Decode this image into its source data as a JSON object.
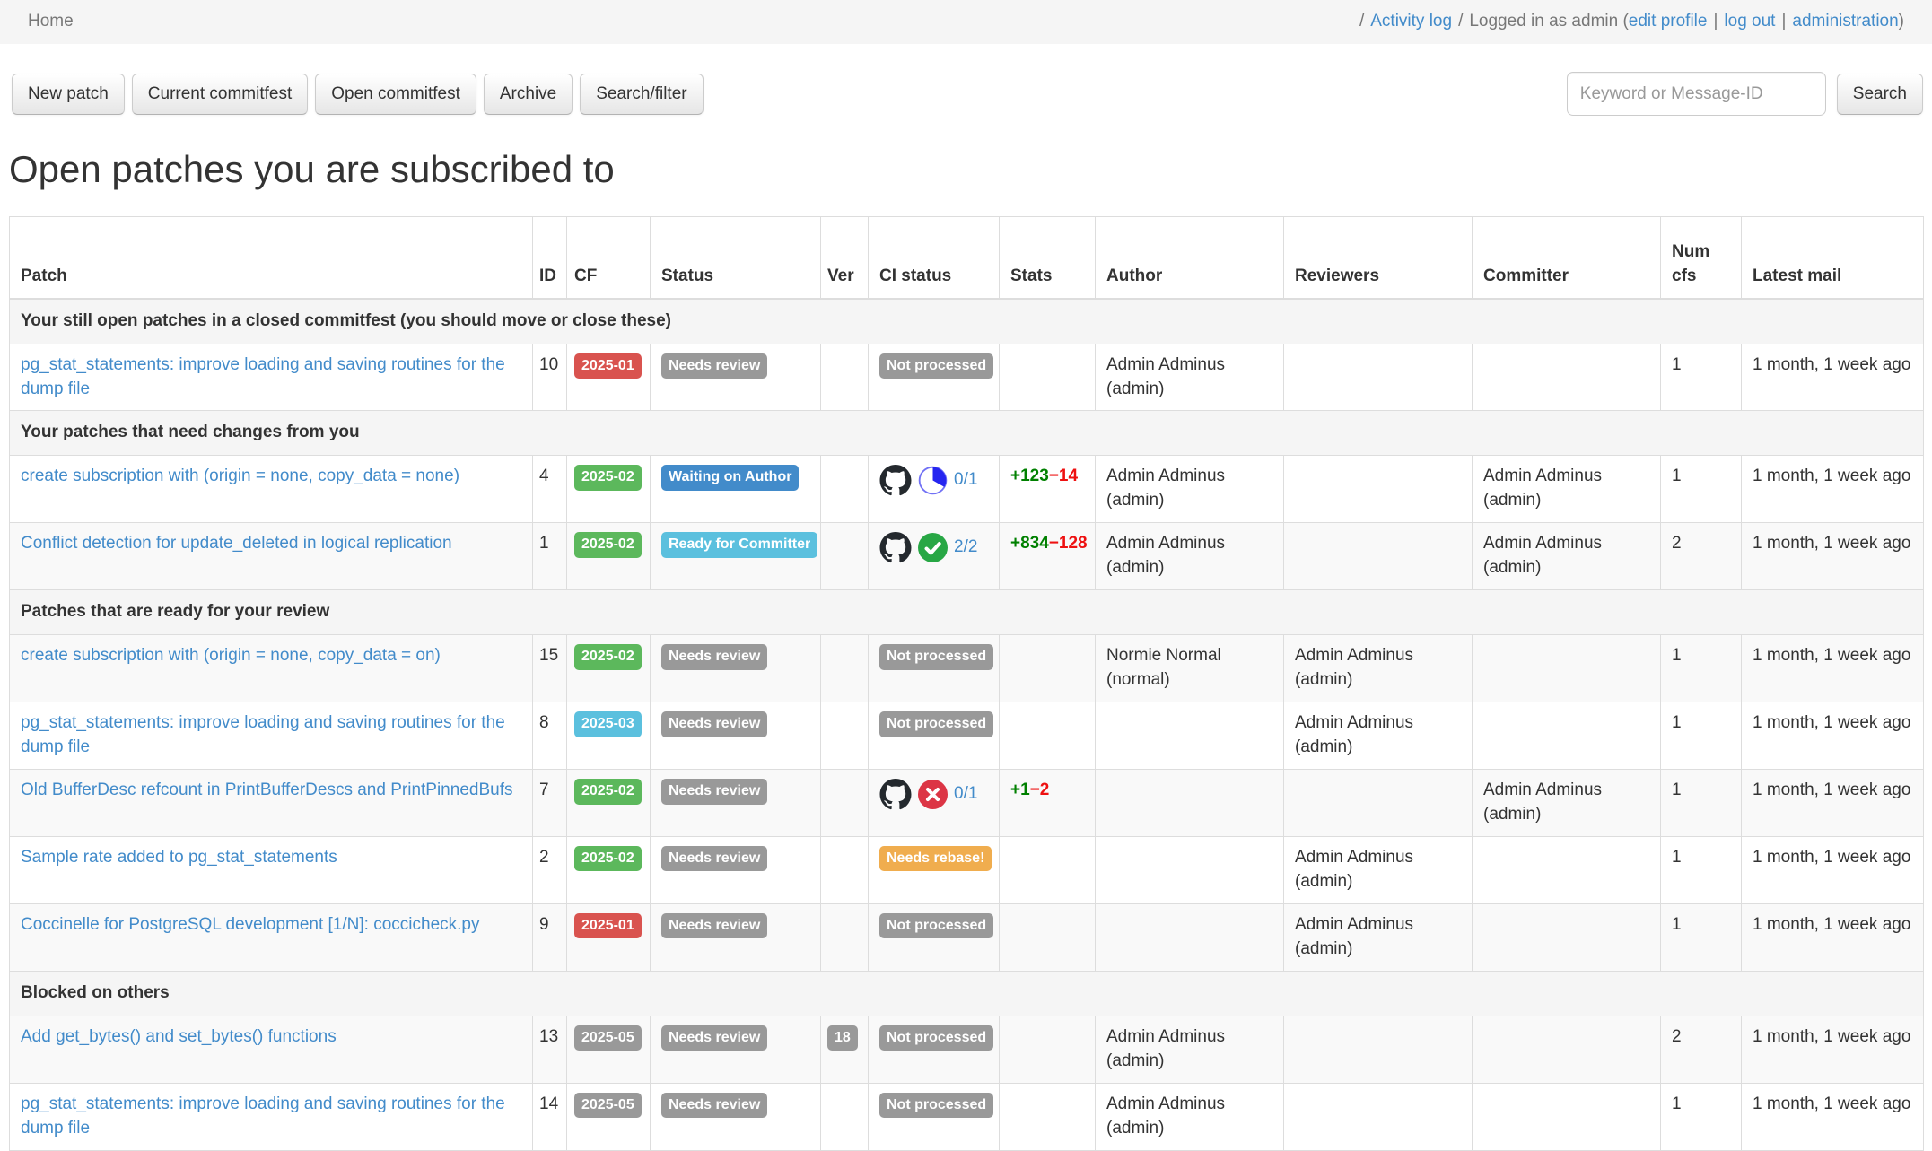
{
  "topbar": {
    "home": "Home",
    "sep": "/",
    "activity_log": "Activity log",
    "logged_in_prefix": "Logged in as admin (",
    "edit_profile": "edit profile",
    "pipe": "|",
    "log_out": "log out",
    "administration": "administration",
    "paren_close": ")"
  },
  "toolbar": {
    "buttons": [
      "New patch",
      "Current commitfest",
      "Open commitfest",
      "Archive",
      "Search/filter"
    ],
    "search_placeholder": "Keyword or Message-ID",
    "search_button": "Search"
  },
  "page": {
    "title": "Open patches you are subscribed to"
  },
  "colors": {
    "link": "#428bca",
    "badge_gray": "#999999",
    "badge_green": "#5cb85c",
    "badge_red": "#d9534f",
    "badge_blue": "#428bca",
    "badge_lightblue": "#5bc0de",
    "badge_orange": "#f0ad4e",
    "stats_added": "#008000",
    "stats_removed": "#ee1111",
    "ci_running": "#2525f0",
    "ci_success": "#28a745",
    "ci_failure": "#dc3545",
    "github": "#24292e"
  },
  "table": {
    "columns": [
      "Patch",
      "ID",
      "CF",
      "Status",
      "Ver",
      "CI status",
      "Stats",
      "Author",
      "Reviewers",
      "Committer",
      "Num cfs",
      "Latest mail"
    ],
    "rows": [
      {
        "type": "section",
        "label": "Your still open patches in a closed commitfest (you should move or close these)"
      },
      {
        "type": "patch",
        "title": "pg_stat_statements: improve loading and saving routines for the dump file",
        "id": "10",
        "cf": {
          "label": "2025-01",
          "color": "#d9534f"
        },
        "status": {
          "label": "Needs review",
          "color": "#999999"
        },
        "ver": null,
        "ci": {
          "kind": "badge",
          "label": "Not processed",
          "color": "#999999"
        },
        "stats": null,
        "author": "Admin Adminus (admin)",
        "reviewers": "",
        "committer": "",
        "num_cfs": "1",
        "latest_mail": "1 month, 1 week ago"
      },
      {
        "type": "section",
        "label": "Your patches that need changes from you"
      },
      {
        "type": "patch",
        "title": "create subscription with (origin = none, copy_data = none)",
        "id": "4",
        "cf": {
          "label": "2025-02",
          "color": "#5cb85c"
        },
        "status": {
          "label": "Waiting on Author",
          "color": "#428bca"
        },
        "ver": null,
        "ci": {
          "kind": "github",
          "state": "running",
          "label": "0/1"
        },
        "stats": {
          "added": "+123",
          "removed": "−14"
        },
        "author": "Admin Adminus (admin)",
        "reviewers": "",
        "committer": "Admin Adminus (admin)",
        "num_cfs": "1",
        "latest_mail": "1 month, 1 week ago"
      },
      {
        "type": "patch",
        "title": "Conflict detection for update_deleted in logical replication",
        "id": "1",
        "cf": {
          "label": "2025-02",
          "color": "#5cb85c"
        },
        "status": {
          "label": "Ready for Committer",
          "color": "#5bc0de"
        },
        "ver": null,
        "ci": {
          "kind": "github",
          "state": "success",
          "label": "2/2"
        },
        "stats": {
          "added": "+834",
          "removed": "−128"
        },
        "author": "Admin Adminus (admin)",
        "reviewers": "",
        "committer": "Admin Adminus (admin)",
        "num_cfs": "2",
        "latest_mail": "1 month, 1 week ago"
      },
      {
        "type": "section",
        "label": "Patches that are ready for your review"
      },
      {
        "type": "patch",
        "title": "create subscription with (origin = none, copy_data = on)",
        "id": "15",
        "cf": {
          "label": "2025-02",
          "color": "#5cb85c"
        },
        "status": {
          "label": "Needs review",
          "color": "#999999"
        },
        "ver": null,
        "ci": {
          "kind": "badge",
          "label": "Not processed",
          "color": "#999999"
        },
        "stats": null,
        "author": "Normie Normal (normal)",
        "reviewers": "Admin Adminus (admin)",
        "committer": "",
        "num_cfs": "1",
        "latest_mail": "1 month, 1 week ago"
      },
      {
        "type": "patch",
        "title": "pg_stat_statements: improve loading and saving routines for the dump file",
        "id": "8",
        "cf": {
          "label": "2025-03",
          "color": "#5bc0de"
        },
        "status": {
          "label": "Needs review",
          "color": "#999999"
        },
        "ver": null,
        "ci": {
          "kind": "badge",
          "label": "Not processed",
          "color": "#999999"
        },
        "stats": null,
        "author": "",
        "reviewers": "Admin Adminus (admin)",
        "committer": "",
        "num_cfs": "1",
        "latest_mail": "1 month, 1 week ago"
      },
      {
        "type": "patch",
        "title": "Old BufferDesc refcount in PrintBufferDescs and PrintPinnedBufs",
        "id": "7",
        "cf": {
          "label": "2025-02",
          "color": "#5cb85c"
        },
        "status": {
          "label": "Needs review",
          "color": "#999999"
        },
        "ver": null,
        "ci": {
          "kind": "github",
          "state": "failure",
          "label": "0/1"
        },
        "stats": {
          "added": "+1",
          "removed": "−2"
        },
        "author": "",
        "reviewers": "",
        "committer": "Admin Adminus (admin)",
        "num_cfs": "1",
        "latest_mail": "1 month, 1 week ago"
      },
      {
        "type": "patch",
        "title": "Sample rate added to pg_stat_statements",
        "id": "2",
        "cf": {
          "label": "2025-02",
          "color": "#5cb85c"
        },
        "status": {
          "label": "Needs review",
          "color": "#999999"
        },
        "ver": null,
        "ci": {
          "kind": "badge",
          "label": "Needs rebase!",
          "color": "#f0ad4e"
        },
        "stats": null,
        "author": "",
        "reviewers": "Admin Adminus (admin)",
        "committer": "",
        "num_cfs": "1",
        "latest_mail": "1 month, 1 week ago"
      },
      {
        "type": "patch",
        "title": "Coccinelle for PostgreSQL development [1/N]: coccicheck.py",
        "id": "9",
        "cf": {
          "label": "2025-01",
          "color": "#d9534f"
        },
        "status": {
          "label": "Needs review",
          "color": "#999999"
        },
        "ver": null,
        "ci": {
          "kind": "badge",
          "label": "Not processed",
          "color": "#999999"
        },
        "stats": null,
        "author": "",
        "reviewers": "Admin Adminus (admin)",
        "committer": "",
        "num_cfs": "1",
        "latest_mail": "1 month, 1 week ago"
      },
      {
        "type": "section",
        "label": "Blocked on others"
      },
      {
        "type": "patch",
        "title": "Add get_bytes() and set_bytes() functions",
        "id": "13",
        "cf": {
          "label": "2025-05",
          "color": "#999999"
        },
        "status": {
          "label": "Needs review",
          "color": "#999999"
        },
        "ver": {
          "label": "18",
          "color": "#999999"
        },
        "ci": {
          "kind": "badge",
          "label": "Not processed",
          "color": "#999999"
        },
        "stats": null,
        "author": "Admin Adminus (admin)",
        "reviewers": "",
        "committer": "",
        "num_cfs": "2",
        "latest_mail": "1 month, 1 week ago"
      },
      {
        "type": "patch",
        "title": "pg_stat_statements: improve loading and saving routines for the dump file",
        "id": "14",
        "cf": {
          "label": "2025-05",
          "color": "#999999"
        },
        "status": {
          "label": "Needs review",
          "color": "#999999"
        },
        "ver": null,
        "ci": {
          "kind": "badge",
          "label": "Not processed",
          "color": "#999999"
        },
        "stats": null,
        "author": "Admin Adminus (admin)",
        "reviewers": "",
        "committer": "",
        "num_cfs": "1",
        "latest_mail": "1 month, 1 week ago"
      }
    ]
  }
}
